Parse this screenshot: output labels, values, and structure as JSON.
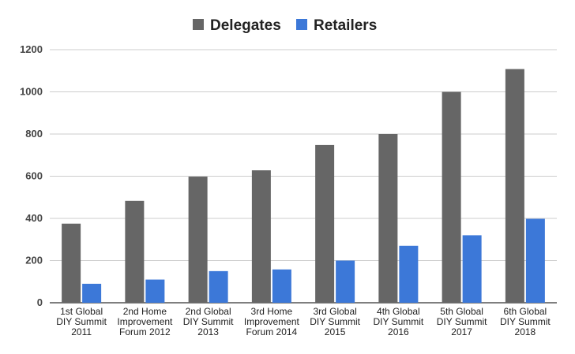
{
  "chart_data": {
    "type": "bar",
    "categories": [
      [
        "1st Global",
        "DIY Summit",
        "2011"
      ],
      [
        "2nd Home",
        "Improvement",
        "Forum 2012"
      ],
      [
        "2nd Global",
        "DIY Summit",
        "2013"
      ],
      [
        "3rd Home",
        "Improvement",
        "Forum 2014"
      ],
      [
        "3rd Global",
        "DIY Summit",
        "2015"
      ],
      [
        "4th Global",
        "DIY Summit",
        "2016"
      ],
      [
        "5th Global",
        "DIY Summit",
        "2017"
      ],
      [
        "6th Global",
        "DIY Summit",
        "2018"
      ]
    ],
    "series": [
      {
        "name": "Delegates",
        "color": "#666666",
        "values": [
          375,
          483,
          598,
          628,
          748,
          800,
          1000,
          1108
        ]
      },
      {
        "name": "Retailers",
        "color": "#3c78d8",
        "values": [
          90,
          110,
          150,
          158,
          200,
          270,
          320,
          398
        ]
      }
    ],
    "ylim": [
      0,
      1200
    ],
    "yticks": [
      0,
      200,
      400,
      600,
      800,
      1000,
      1200
    ],
    "grid": true,
    "legend_position": "top-center"
  }
}
